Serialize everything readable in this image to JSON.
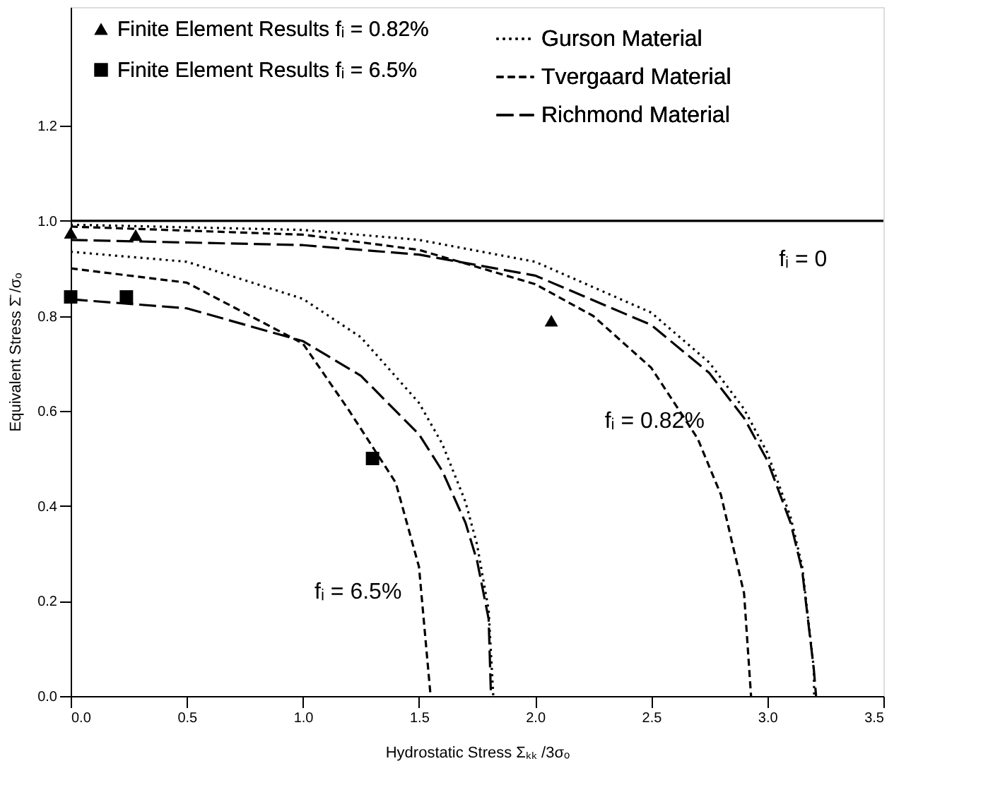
{
  "chart_data": {
    "type": "line",
    "xlabel": "Hydrostatic Stress  Σₖₖ /3σₒ",
    "ylabel": "Equivalent Stress  Σ̄ /σₒ",
    "xlim": [
      0,
      3.5
    ],
    "ylim": [
      0,
      1.45
    ],
    "xticks": [
      {
        "value": 0,
        "label": "0.0"
      },
      0.5,
      {
        "value": 1,
        "label": "1.0"
      },
      1.5,
      {
        "value": 2,
        "label": "2.0"
      },
      2.5,
      {
        "value": 3,
        "label": "3.0"
      },
      3.5
    ],
    "yticks": [
      {
        "value": 0,
        "label": "0.0"
      },
      0.2,
      0.4,
      0.6,
      0.8,
      {
        "value": 1,
        "label": "1.0"
      },
      1.2
    ],
    "grid": false,
    "legend": "top",
    "series": [
      {
        "type": "scatter",
        "name": "Finite Element Results fᵢ = 0.82%",
        "color": "#000000",
        "marker": "triangle",
        "x": [
          0.0,
          0.28,
          2.07
        ],
        "values": [
          0.975,
          0.97,
          0.79
        ]
      },
      {
        "type": "scatter",
        "name": "Finite Element Results fᵢ = 6.5%",
        "color": "#000000",
        "marker": "square",
        "x": [
          0.0,
          0.24,
          1.3
        ],
        "values": [
          0.84,
          0.84,
          0.5
        ]
      },
      {
        "color": "#000000",
        "line_style": "solid",
        "x": [
          0.0,
          3.5
        ],
        "values": [
          1.0,
          1.0
        ]
      },
      {
        "name": "Gurson Material",
        "color": "#000000",
        "line_style": "dotted",
        "x": [
          0.0,
          1.0,
          1.5,
          2.0,
          2.5,
          2.75,
          2.9,
          3.0,
          3.1,
          3.15,
          3.2,
          3.202
        ],
        "values": [
          0.992,
          0.981,
          0.96,
          0.914,
          0.807,
          0.702,
          0.604,
          0.512,
          0.377,
          0.274,
          0.06,
          0.0
        ]
      },
      {
        "name": "Tvergaard Material",
        "color": "#000000",
        "line_style": "dashed",
        "x": [
          0.0,
          1.0,
          1.5,
          2.0,
          2.25,
          2.5,
          2.7,
          2.8,
          2.9,
          2.93
        ],
        "values": [
          0.988,
          0.971,
          0.939,
          0.867,
          0.8,
          0.691,
          0.542,
          0.424,
          0.216,
          0.0
        ]
      },
      {
        "name": "Richmond Material",
        "color": "#000000",
        "line_style": "dashed",
        "x": [
          0.0,
          1.0,
          1.5,
          2.0,
          2.5,
          2.75,
          2.9,
          3.0,
          3.1,
          3.15,
          3.2,
          3.21
        ],
        "values": [
          0.96,
          0.949,
          0.929,
          0.885,
          0.781,
          0.68,
          0.585,
          0.496,
          0.365,
          0.265,
          0.058,
          0.0
        ]
      },
      {
        "color": "#000000",
        "line_style": "dotted",
        "x": [
          0.0,
          0.5,
          1.0,
          1.25,
          1.5,
          1.6,
          1.7,
          1.75,
          1.8,
          1.82
        ],
        "values": [
          0.935,
          0.914,
          0.836,
          0.755,
          0.617,
          0.531,
          0.409,
          0.319,
          0.181,
          0.0
        ]
      },
      {
        "color": "#000000",
        "line_style": "dashed",
        "x": [
          0.0,
          0.5,
          1.0,
          1.2,
          1.4,
          1.5,
          1.55
        ],
        "values": [
          0.9,
          0.87,
          0.742,
          0.6,
          0.449,
          0.272,
          0.0
        ]
      },
      {
        "color": "#000000",
        "line_style": "dashed",
        "x": [
          0.0,
          0.5,
          1.0,
          1.25,
          1.4,
          1.5,
          1.6,
          1.7,
          1.75,
          1.8,
          1.81
        ],
        "values": [
          0.835,
          0.816,
          0.747,
          0.674,
          0.6,
          0.551,
          0.474,
          0.365,
          0.285,
          0.162,
          0.0
        ]
      }
    ],
    "annotations": [
      "fᵢ = 0",
      "fᵢ = 0.82%",
      "fᵢ = 6.5%"
    ]
  }
}
